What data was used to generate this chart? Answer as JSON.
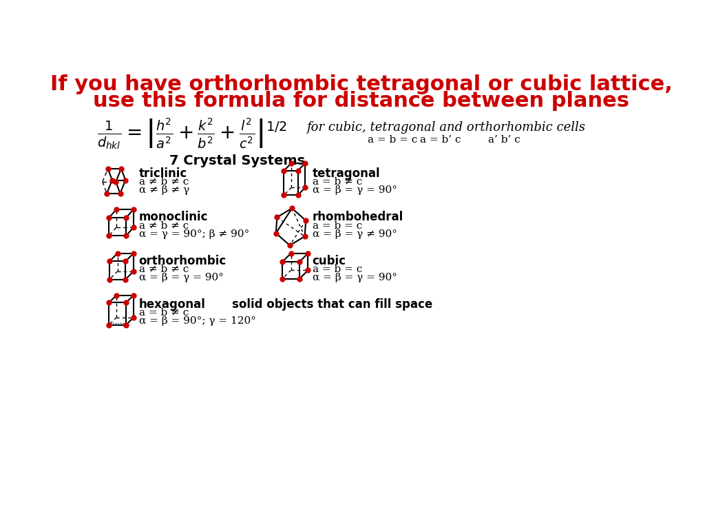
{
  "title_line1": "If you have orthorhombic tetragonal or cubic lattice,",
  "title_line2": "use this formula for distance between planes",
  "title_color": "#CC0000",
  "title_fontsize": 22,
  "bg_color": "#FFFFFF",
  "crystal_systems_title": "7 Crystal Systems",
  "crystal_systems": [
    {
      "name": "triclinic",
      "line1": "a ≠ b ≠ c",
      "line2": "α ≠ β ≠ γ",
      "col": 0,
      "row": 0
    },
    {
      "name": "tetragonal",
      "line1": "a = b ≠ c",
      "line2": "α = β = γ = 90°",
      "col": 1,
      "row": 0
    },
    {
      "name": "monoclinic",
      "line1": "a ≠ b ≠ c",
      "line2": "α = γ = 90°; β ≠ 90°",
      "col": 0,
      "row": 1
    },
    {
      "name": "rhombohedral",
      "line1": "a = b = c",
      "line2": "α = β = γ ≠ 90°",
      "col": 1,
      "row": 1
    },
    {
      "name": "orthorhombic",
      "line1": "a ≠ b ≠ c",
      "line2": "α = β = γ = 90°",
      "col": 0,
      "row": 2
    },
    {
      "name": "cubic",
      "line1": "a = b = c",
      "line2": "α = β = γ = 90°",
      "col": 1,
      "row": 2
    },
    {
      "name": "hexagonal",
      "line1": "a = b ≠ c",
      "line2": "α = β = 90°; γ = 120°",
      "col": 0,
      "row": 3,
      "extra": "solid objects that can fill space"
    }
  ],
  "formula_label": "for cubic, tetragonal and orthorhombic cells",
  "formula_sub1": "a = b = c",
  "formula_sub2": "a = b’ c",
  "formula_sub3": "a’ b’ c"
}
